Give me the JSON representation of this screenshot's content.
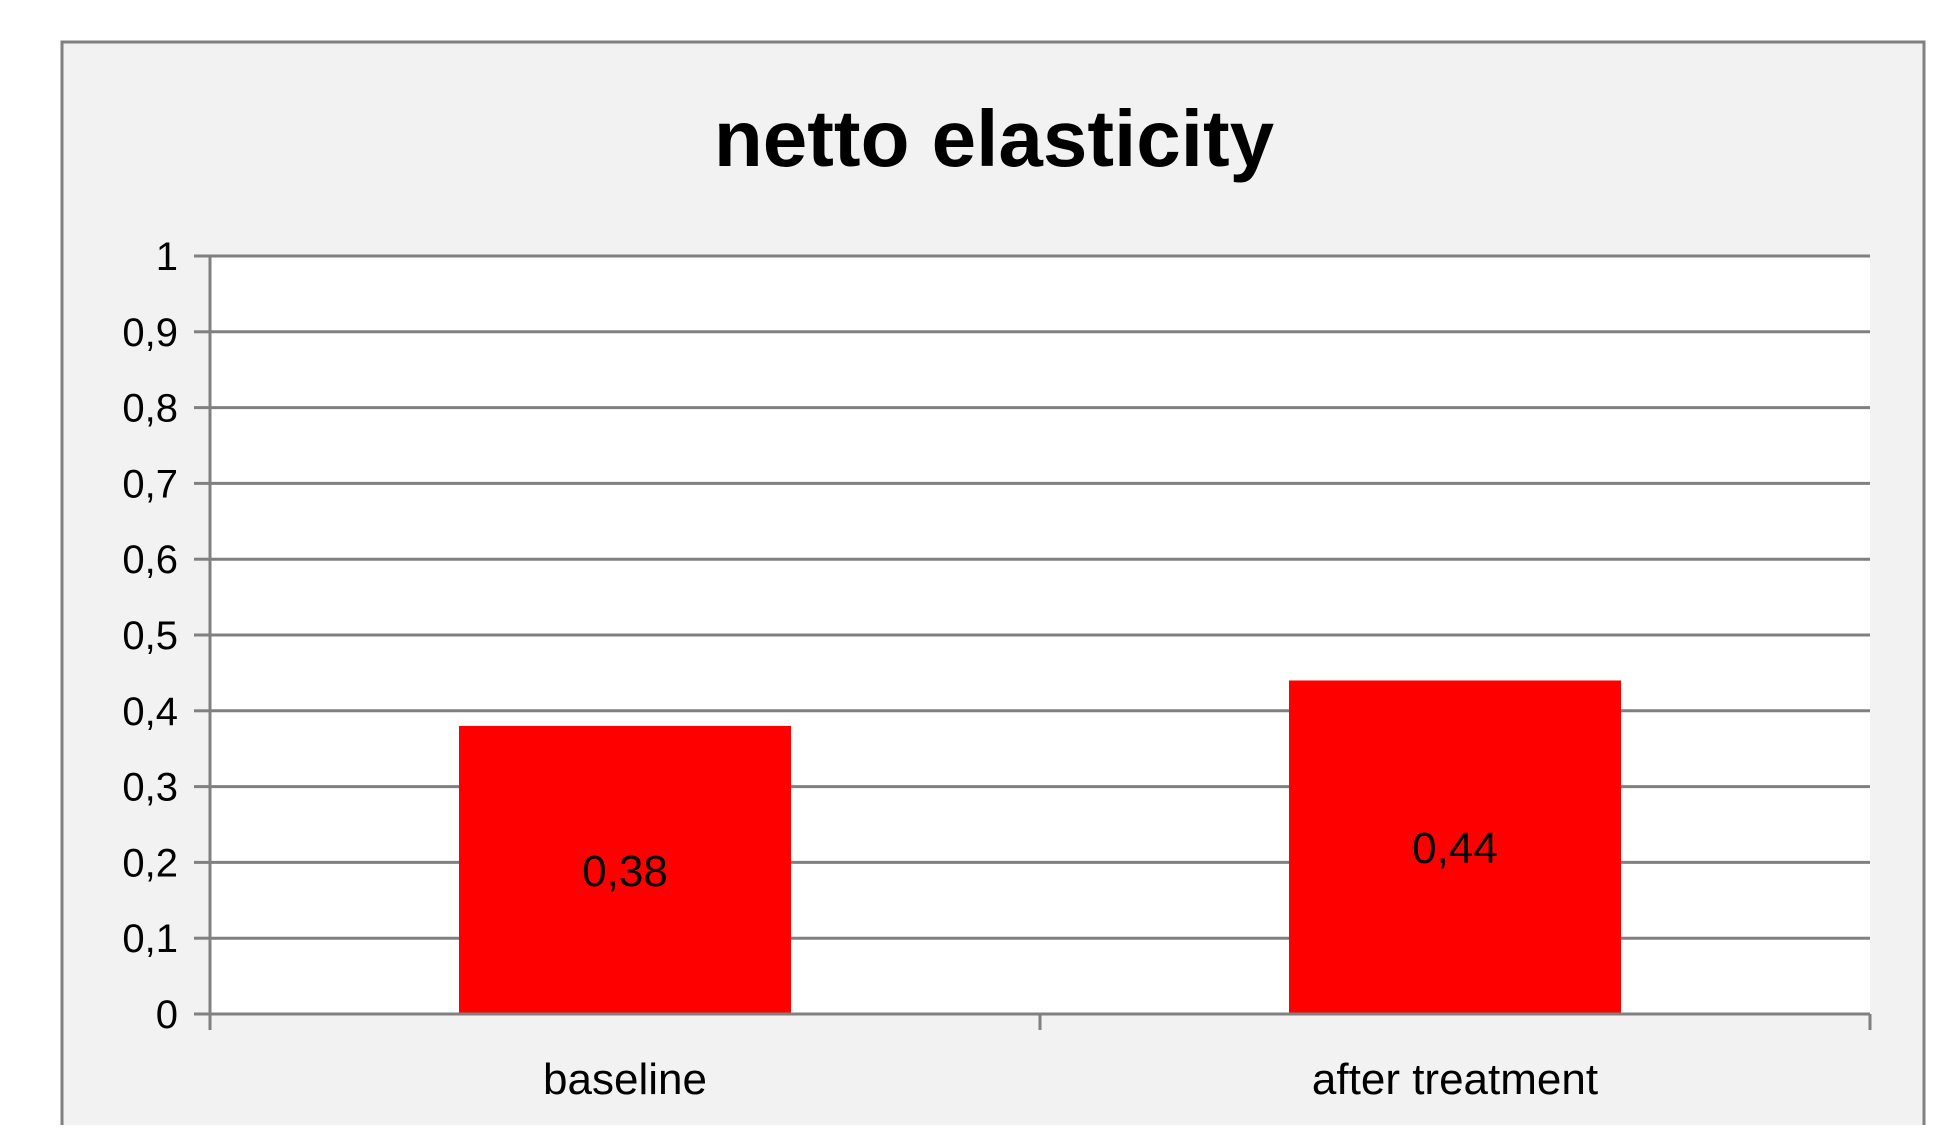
{
  "colors": {
    "chart_background": "#f2f2f2",
    "plot_background": "#ffffff",
    "frame": "#808080",
    "gridline": "#808080",
    "bar": "#ff0000",
    "text": "#000000"
  },
  "chart_data": {
    "type": "bar",
    "title": "netto elasticity",
    "xlabel": "",
    "ylabel": "",
    "categories": [
      "baseline",
      "after treatment"
    ],
    "values": [
      0.38,
      0.44
    ],
    "data_labels": [
      "0,38",
      "0,44"
    ],
    "ylim": [
      0,
      1
    ],
    "yticks": [
      0,
      0.1,
      0.2,
      0.3,
      0.4,
      0.5,
      0.6,
      0.7,
      0.8,
      0.9,
      1
    ],
    "ytick_labels": [
      "0",
      "0,1",
      "0,2",
      "0,3",
      "0,4",
      "0,5",
      "0,6",
      "0,7",
      "0,8",
      "0,9",
      "1"
    ],
    "grid": true,
    "legend": "none"
  }
}
